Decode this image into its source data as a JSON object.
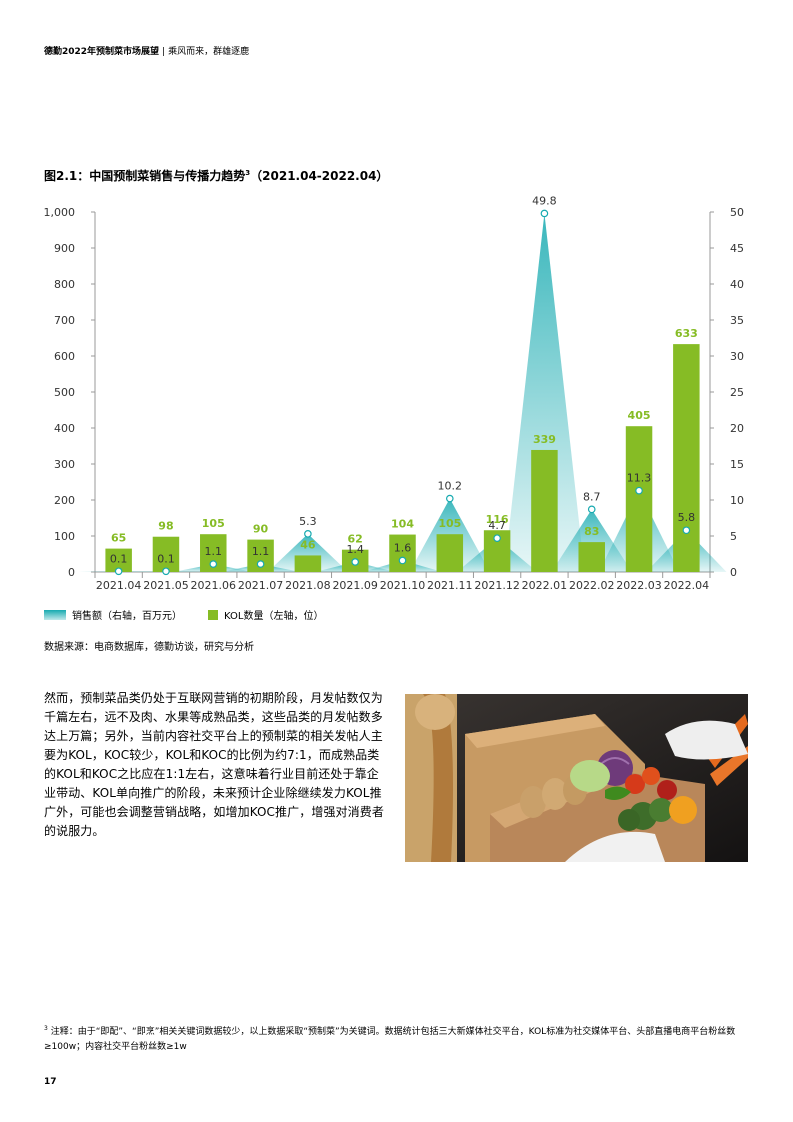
{
  "header": {
    "report_title": "德勤2022年预制菜市场展望",
    "separator": "|",
    "subtitle": "乘风而来，群雄逐鹿"
  },
  "figure": {
    "title": "图2.1：中国预制菜销售与传播力趋势",
    "footnote_mark": "3",
    "date_range": "（2021.04-2022.04）"
  },
  "chart_data": {
    "type": "bar",
    "categories": [
      "2021.04",
      "2021.05",
      "2021.06",
      "2021.07",
      "2021.08",
      "2021.09",
      "2021.10",
      "2021.11",
      "2021.12",
      "2022.01",
      "2022.02",
      "2022.03",
      "2022.04"
    ],
    "series": [
      {
        "name": "销售额（右轴，百万元）",
        "type": "area",
        "axis": "right",
        "color": "#17aab0",
        "values": [
          0.1,
          0.1,
          1.1,
          1.1,
          5.3,
          1.4,
          1.6,
          10.2,
          4.7,
          49.8,
          8.7,
          11.3,
          5.8
        ],
        "labels": [
          "0.1",
          "0.1",
          "1.1",
          "1.1",
          "5.3",
          "1.4",
          "1.6",
          "10.2",
          "4.7",
          "49.8",
          "8.7",
          "11.3",
          "5.8"
        ]
      },
      {
        "name": "KOL数量（左轴，位）",
        "type": "bar",
        "axis": "left",
        "color": "#86bc25",
        "values": [
          65,
          98,
          105,
          90,
          46,
          62,
          104,
          105,
          116,
          339,
          83,
          405,
          633
        ],
        "labels": [
          "65",
          "98",
          "105",
          "90",
          "46",
          "62",
          "104",
          "105",
          "116",
          "339",
          "83",
          "405",
          "633"
        ]
      }
    ],
    "left_axis": {
      "ylim": [
        0,
        1000
      ],
      "ticks": [
        "0",
        "100",
        "200",
        "300",
        "400",
        "500",
        "600",
        "700",
        "800",
        "900",
        "1,000"
      ]
    },
    "right_axis": {
      "ylim": [
        0,
        50
      ],
      "ticks": [
        "0",
        "5",
        "10",
        "15",
        "20",
        "25",
        "30",
        "35",
        "40",
        "45",
        "50"
      ]
    },
    "grid": false,
    "legend_position": "bottom-left"
  },
  "legend": {
    "sales_label": "销售额（右轴，百万元）",
    "kol_label": "KOL数量（左轴，位）"
  },
  "source": "数据来源：电商数据库，德勤访谈，研究与分析",
  "body_text": "然而，预制菜品类仍处于互联网营销的初期阶段，月发帖数仅为千篇左右，远不及肉、水果等成熟品类，这些品类的月发帖数多达上万篇；另外，当前内容社交平台上的预制菜的相关发帖人主要为KOL，KOC较少，KOL和KOC的比例为约7:1，而成熟品类的KOL和KOC之比应在1:1左右，这意味着行业目前还处于靠企业带动、KOL单向推广的阶段，未来预计企业除继续发力KOL推广外，可能也会调整营销战略，如增加KOC推广，增强对消费者的说服力。",
  "footnote": {
    "mark": "3",
    "text": "注释：由于“即配”、“即烹”相关关键词数据较少，以上数据采取“预制菜”为关键词。数据统计包括三大新媒体社交平台，KOL标准为社交媒体平台、头部直播电商平台粉丝数≥100w；内容社交平台粉丝数≥1w"
  },
  "page_number": "17",
  "colors": {
    "teal": "#17aab0",
    "green": "#86bc25"
  }
}
